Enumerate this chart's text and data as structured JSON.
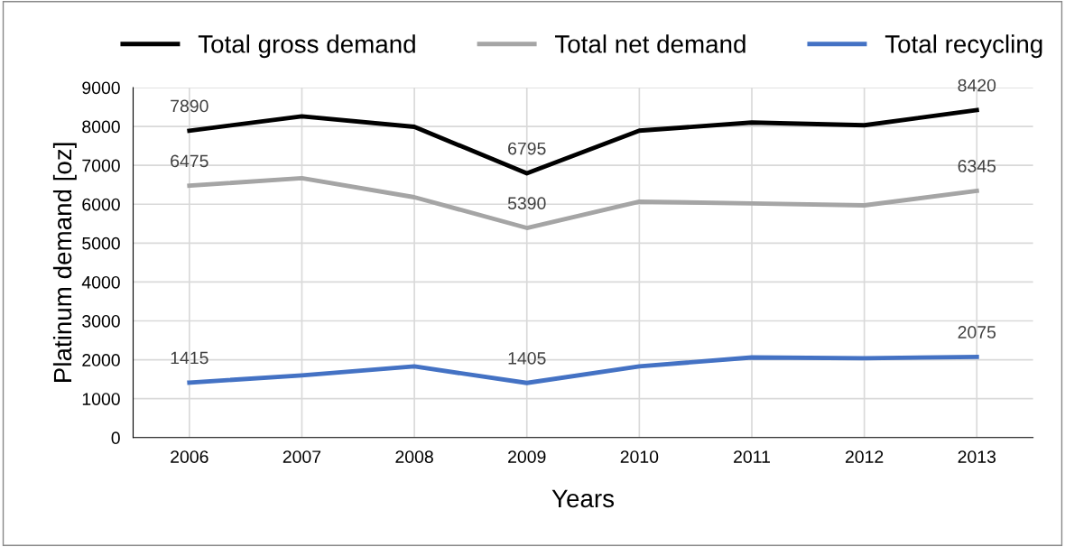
{
  "chart_data": {
    "type": "line",
    "xlabel": "Years",
    "ylabel": "Platinum demand [oz]",
    "categories": [
      "2006",
      "2007",
      "2008",
      "2009",
      "2010",
      "2011",
      "2012",
      "2013"
    ],
    "series": [
      {
        "name": "Total gross demand",
        "color": "#000000",
        "values": [
          7890,
          8260,
          7990,
          6795,
          7890,
          8100,
          8030,
          8420
        ],
        "value_labels": [
          "7890",
          null,
          null,
          "6795",
          null,
          null,
          null,
          "8420"
        ]
      },
      {
        "name": "Total net demand",
        "color": "#a5a5a5",
        "values": [
          6475,
          6670,
          6180,
          5390,
          6065,
          6020,
          5970,
          6345
        ],
        "value_labels": [
          "6475",
          null,
          null,
          "5390",
          null,
          null,
          null,
          "6345"
        ]
      },
      {
        "name": "Total recycling",
        "color": "#4472c4",
        "values": [
          1415,
          1600,
          1830,
          1405,
          1830,
          2060,
          2040,
          2075
        ],
        "value_labels": [
          "1415",
          null,
          null,
          "1405",
          null,
          null,
          null,
          "2075"
        ]
      }
    ],
    "ylim": [
      0,
      9000
    ],
    "yticks": [
      0,
      1000,
      2000,
      3000,
      4000,
      5000,
      6000,
      7000,
      8000,
      9000
    ],
    "grid": true,
    "legend": "top",
    "marker": "none",
    "line_style": "solid"
  }
}
